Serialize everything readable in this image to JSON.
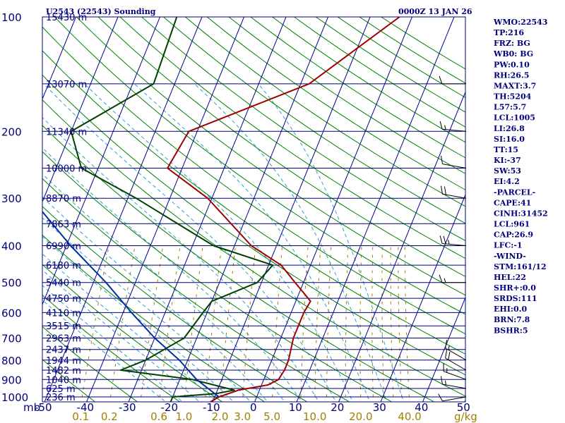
{
  "header": {
    "title": "U2543 (22543) Sounding",
    "time": "0000Z 13 JAN 26"
  },
  "units": {
    "pressure": "mb",
    "mixing_ratio": "g/kg"
  },
  "indices": [
    "WMO:22543",
    "TP:216",
    "FRZ: BG",
    "WB0: BG",
    "PW:0.10",
    "RH:26.5",
    "MAXT:3.7",
    "TH:5204",
    "L57:5.7",
    "LCL:1005",
    "LI:26.8",
    "SI:16.0",
    "TT:15",
    "KI:-37",
    "SW:53",
    "EI:4.2",
    "-PARCEL-",
    "CAPE:41",
    "CINH:31452",
    "LCL:961",
    "CAP:26.9",
    "LFC:-1",
    "-WIND-",
    "STM:161/12",
    "HEL:22",
    "SHR+:0.0",
    "SRDS:111",
    "EHI:0.0",
    "BRN:7.8",
    "BSHR:5"
  ],
  "colors": {
    "axes": "#00007a",
    "temperature": "#a00000",
    "dewpoint": "#004000",
    "parcel": "#0030a0",
    "isotherm": "#000090",
    "dry_adiabat": "#008000",
    "moist_adiabat": "#2aa0c8",
    "mixing_ratio": "#a08000",
    "wind": "#000000"
  },
  "chart_data": {
    "type": "line",
    "title": "U2543 (22543) Sounding",
    "xlabel": "",
    "ylabel": "mb",
    "xlim": [
      -50,
      50
    ],
    "ylim": [
      1050,
      100
    ],
    "y_scale": "log",
    "pressure_ticks": [
      100,
      200,
      300,
      400,
      500,
      600,
      700,
      800,
      900,
      1000
    ],
    "temperature_ticks": [
      -50,
      -40,
      -30,
      -20,
      -10,
      0,
      10,
      20,
      30,
      40,
      50
    ],
    "mixing_ratio_labels": [
      {
        "value": 0.1,
        "label": "0.1"
      },
      {
        "value": 0.2,
        "label": "0.2"
      },
      {
        "value": 0.6,
        "label": "0.6"
      },
      {
        "value": 1.0,
        "label": "1.0"
      },
      {
        "value": 2.0,
        "label": "2.0"
      },
      {
        "value": 3.0,
        "label": "3.0"
      },
      {
        "value": 5.0,
        "label": "5.0"
      },
      {
        "value": 10.0,
        "label": "10.0"
      },
      {
        "value": 20.0,
        "label": "20.0"
      },
      {
        "value": 40.0,
        "label": "40.0"
      }
    ],
    "height_levels": [
      {
        "p": 1000,
        "label": "236 m"
      },
      {
        "p": 950,
        "label": "625 m"
      },
      {
        "p": 900,
        "label": "1040 m"
      },
      {
        "p": 850,
        "label": "1482 m"
      },
      {
        "p": 800,
        "label": "1944 m"
      },
      {
        "p": 750,
        "label": "2437 m"
      },
      {
        "p": 700,
        "label": "2963 m"
      },
      {
        "p": 650,
        "label": "3515 m"
      },
      {
        "p": 600,
        "label": "4110 m"
      },
      {
        "p": 550,
        "label": "4750 m"
      },
      {
        "p": 500,
        "label": "5440 m"
      },
      {
        "p": 450,
        "label": "6180 m"
      },
      {
        "p": 400,
        "label": "6990 m"
      },
      {
        "p": 350,
        "label": "7863 m"
      },
      {
        "p": 300,
        "label": "8870 m"
      },
      {
        "p": 250,
        "label": "10000 m"
      },
      {
        "p": 200,
        "label": "11340 m"
      },
      {
        "p": 150,
        "label": "13070 m"
      },
      {
        "p": 100,
        "label": "15430 m"
      }
    ],
    "series": [
      {
        "key": "temperature",
        "points": [
          [
            1030,
            -10.5
          ],
          [
            1000,
            -9
          ],
          [
            960,
            -5
          ],
          [
            930,
            1.5
          ],
          [
            900,
            3.5
          ],
          [
            850,
            4
          ],
          [
            800,
            4
          ],
          [
            700,
            3
          ],
          [
            600,
            3
          ],
          [
            560,
            3.5
          ],
          [
            500,
            -2
          ],
          [
            450,
            -7
          ],
          [
            400,
            -16
          ],
          [
            300,
            -31
          ],
          [
            250,
            -43.5
          ],
          [
            200,
            -42
          ],
          [
            150,
            -18
          ],
          [
            100,
            -3
          ]
        ]
      },
      {
        "key": "dewpoint",
        "points": [
          [
            1030,
            -20
          ],
          [
            1000,
            -20
          ],
          [
            980,
            -10
          ],
          [
            960,
            -6
          ],
          [
            900,
            -17
          ],
          [
            850,
            -35
          ],
          [
            800,
            -30
          ],
          [
            700,
            -23
          ],
          [
            600,
            -21
          ],
          [
            560,
            -20
          ],
          [
            500,
            -11
          ],
          [
            450,
            -9
          ],
          [
            400,
            -25
          ],
          [
            300,
            -48
          ],
          [
            250,
            -64
          ],
          [
            200,
            -70
          ],
          [
            150,
            -55
          ],
          [
            100,
            -56
          ]
        ]
      },
      {
        "key": "parcel",
        "points": [
          [
            1000,
            -9
          ],
          [
            900,
            -16
          ],
          [
            800,
            -22
          ],
          [
            700,
            -30
          ],
          [
            600,
            -38
          ],
          [
            500,
            -47
          ],
          [
            400,
            -59
          ],
          [
            300,
            -73
          ],
          [
            250,
            -82
          ],
          [
            200,
            -91
          ],
          [
            150,
            -101
          ],
          [
            100,
            -113
          ]
        ]
      }
    ],
    "wind_barbs": [
      {
        "p": 1000,
        "dir": 260,
        "spd": 10
      },
      {
        "p": 950,
        "dir": 280,
        "spd": 15
      },
      {
        "p": 900,
        "dir": 290,
        "spd": 15
      },
      {
        "p": 850,
        "dir": 300,
        "spd": 20
      },
      {
        "p": 800,
        "dir": 300,
        "spd": 15
      },
      {
        "p": 500,
        "dir": 270,
        "spd": 15
      },
      {
        "p": 400,
        "dir": 275,
        "spd": 25
      },
      {
        "p": 300,
        "dir": 280,
        "spd": 20
      },
      {
        "p": 250,
        "dir": 280,
        "spd": 10
      },
      {
        "p": 200,
        "dir": 275,
        "spd": 15
      },
      {
        "p": 150,
        "dir": 270,
        "spd": 10
      }
    ]
  }
}
